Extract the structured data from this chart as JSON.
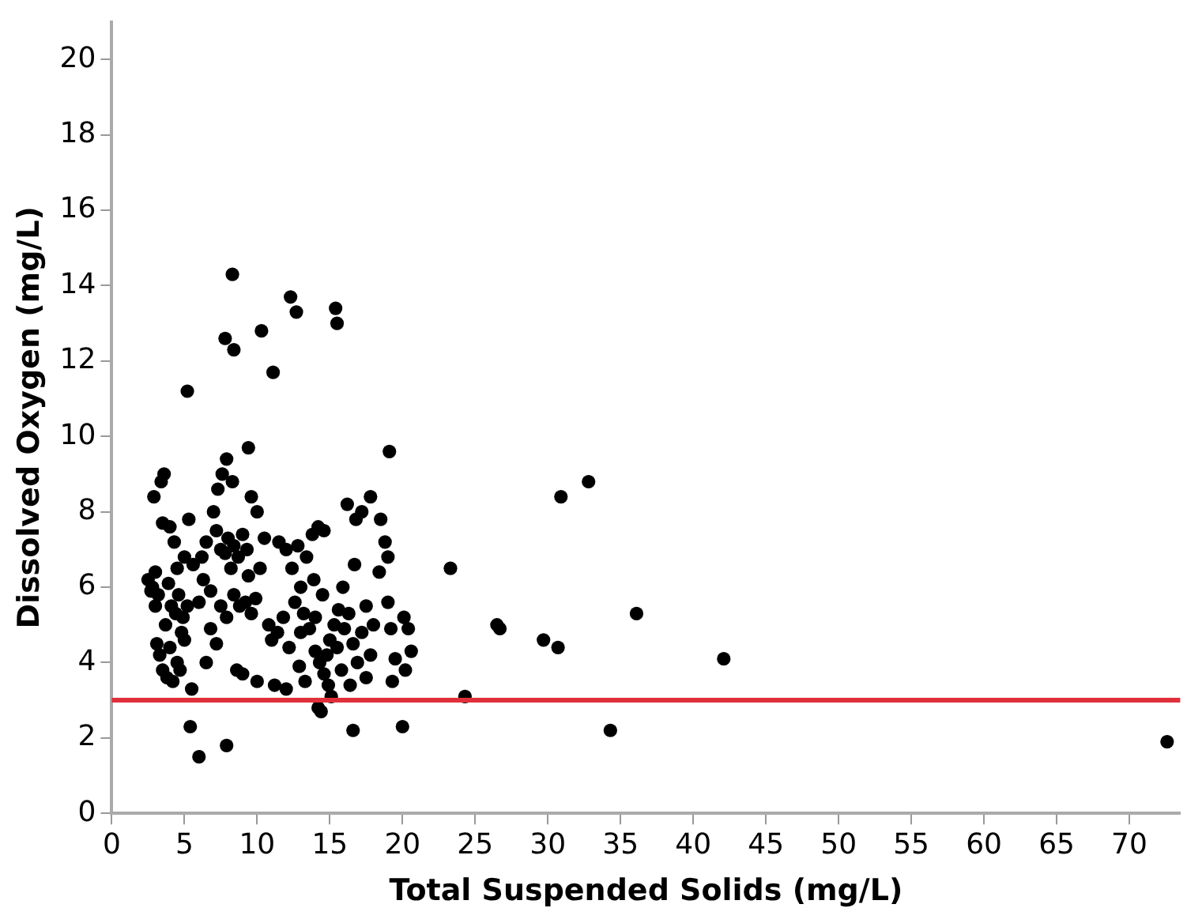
{
  "chart_data": {
    "type": "scatter",
    "xlabel": "Total Suspended Solids (mg/L)",
    "ylabel": "Dissolved Oxygen (mg/L)",
    "xlim": [
      0,
      73.5
    ],
    "ylim": [
      0,
      21
    ],
    "xticks": [
      0,
      5,
      10,
      15,
      20,
      25,
      30,
      35,
      40,
      45,
      50,
      55,
      60,
      65,
      70
    ],
    "yticks": [
      0,
      2,
      4,
      6,
      8,
      10,
      12,
      14,
      16,
      18,
      20
    ],
    "grid": false,
    "legend": false,
    "marker": "circle",
    "ref_lines": [
      {
        "axis": "y",
        "value": 3,
        "color": "#e0303b"
      }
    ],
    "series": [
      {
        "color": "#000000",
        "x": [
          5.2,
          8.3,
          7.8,
          8.4,
          10.3,
          11.1,
          12.3,
          12.7,
          15.4,
          15.5,
          9.4,
          19.1,
          23.3,
          26.5,
          26.7,
          29.7,
          30.7,
          30.9,
          32.8,
          36.1,
          42.1,
          34.3,
          24.3,
          72.6,
          5.4,
          6.0,
          7.9,
          14.4,
          16.6,
          20,
          2.5,
          2.8,
          3.0,
          3.2,
          2.9,
          3.4,
          3.6,
          3.5,
          4.0,
          3.1,
          3.3,
          3.5,
          3.8,
          4.2,
          4.0,
          3.7,
          4.1,
          4.4,
          4.6,
          3.9,
          4.5,
          4.8,
          4.5,
          5.0,
          5.2,
          5.0,
          5.3,
          4.3,
          4.7,
          4.9,
          3.0,
          2.7,
          5.5,
          5.6,
          6.2,
          6.5,
          6.8,
          7.0,
          7.3,
          7.6,
          7.9,
          8.3,
          7.2,
          7.5,
          7.8,
          8.0,
          8.4,
          8.7,
          9.0,
          9.3,
          9.6,
          8.2,
          6.8,
          7.2,
          7.5,
          7.9,
          8.4,
          8.8,
          9.2,
          9.6,
          9.9,
          8.6,
          9.0,
          10.0,
          6.5,
          9.4,
          10.2,
          10.5,
          10.0,
          10.8,
          6.0,
          6.3,
          11.0,
          11.4,
          11.8,
          12.2,
          12.6,
          13.0,
          13.4,
          13.8,
          14.2,
          14.6,
          11.5,
          12.0,
          12.4,
          12.8,
          13.2,
          13.6,
          14.0,
          14.3,
          14.6,
          14.9,
          15.0,
          15.3,
          15.6,
          14.5,
          13.9,
          12.9,
          13.3,
          12.0,
          11.2,
          14.2,
          15.1,
          14.8,
          15.5,
          15.8,
          13.0,
          14.0,
          16.0,
          16.3,
          16.6,
          16.9,
          17.2,
          17.5,
          17.8,
          16.2,
          16.8,
          17.2,
          17.8,
          18.5,
          18.8,
          18.4,
          19.0,
          19.2,
          19.5,
          19.3,
          20.1,
          20.4,
          20.6,
          20.2,
          16.4,
          17.5,
          15.9,
          18.0,
          16.7,
          19.0
        ],
        "values": [
          11.2,
          14.3,
          12.6,
          12.3,
          12.8,
          11.7,
          13.7,
          13.3,
          13.4,
          13.0,
          9.7,
          9.6,
          6.5,
          5.0,
          4.9,
          4.6,
          4.4,
          8.4,
          8.8,
          5.3,
          4.1,
          2.2,
          3.1,
          1.9,
          2.3,
          1.5,
          1.8,
          2.7,
          2.2,
          2.3,
          6.2,
          6.0,
          6.4,
          5.8,
          8.4,
          8.8,
          9.0,
          7.7,
          7.6,
          4.5,
          4.2,
          3.8,
          3.6,
          3.5,
          4.4,
          5.0,
          5.5,
          5.3,
          5.8,
          6.1,
          6.5,
          4.8,
          4.0,
          4.6,
          5.5,
          6.8,
          7.8,
          7.2,
          3.8,
          5.2,
          5.5,
          5.9,
          3.3,
          6.6,
          6.8,
          7.2,
          5.9,
          8.0,
          8.6,
          9.0,
          9.4,
          8.8,
          7.5,
          7.0,
          6.9,
          7.3,
          7.1,
          6.8,
          7.4,
          7.0,
          8.4,
          6.5,
          4.9,
          4.5,
          5.5,
          5.2,
          5.8,
          5.5,
          5.6,
          5.3,
          5.7,
          3.8,
          3.7,
          3.5,
          4.0,
          6.3,
          6.5,
          7.3,
          8.0,
          5.0,
          5.6,
          6.2,
          4.6,
          4.8,
          5.2,
          4.4,
          5.6,
          6.0,
          6.8,
          7.4,
          7.6,
          7.5,
          7.2,
          7.0,
          6.5,
          7.1,
          5.3,
          4.9,
          4.3,
          4.0,
          3.7,
          3.4,
          4.6,
          5.0,
          5.4,
          5.8,
          6.2,
          3.9,
          3.5,
          3.3,
          3.4,
          2.8,
          3.1,
          4.2,
          4.4,
          3.8,
          4.8,
          5.2,
          4.9,
          5.3,
          4.5,
          4.0,
          4.8,
          5.5,
          4.2,
          8.2,
          7.8,
          8.0,
          8.4,
          7.8,
          7.2,
          6.4,
          5.6,
          4.9,
          4.1,
          3.5,
          5.2,
          4.9,
          4.3,
          3.8,
          3.4,
          3.6,
          6.0,
          5.0,
          6.6,
          6.8
        ]
      }
    ]
  }
}
